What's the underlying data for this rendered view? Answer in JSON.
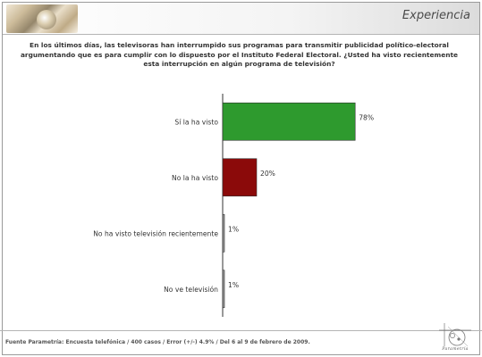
{
  "header": {
    "title": "Experiencia"
  },
  "question": "En los últimos días, las televisoras han interrumpido sus programas para transmitir publicidad político-electoral argumentando que es para cumplir con lo dispuesto por el Instituto Federal Electoral. ¿Usted ha visto recientemente esta interrupción en algún programa de televisión?",
  "chart_data": {
    "type": "bar",
    "orientation": "horizontal",
    "categories": [
      "Sí la ha visto",
      "No la ha visto",
      "No ha visto televisión recientemente",
      "No ve televisión"
    ],
    "values": [
      78,
      20,
      1,
      1
    ],
    "value_labels": [
      "78%",
      "20%",
      "1%",
      "1%"
    ],
    "bar_colors": [
      "#2e9a2e",
      "#8b0a0a",
      "#9a9a9a",
      "#9a9a9a"
    ],
    "xlim": [
      0,
      100
    ],
    "title": "",
    "xlabel": "",
    "ylabel": "",
    "grid": false
  },
  "footer": {
    "source": "Fuente Parametría: Encuesta telefónica / 400 casos / Error (+/-) 4.9% / Del 6 al 9 de febrero de 2009."
  },
  "logo": {
    "text": "Parametría"
  }
}
